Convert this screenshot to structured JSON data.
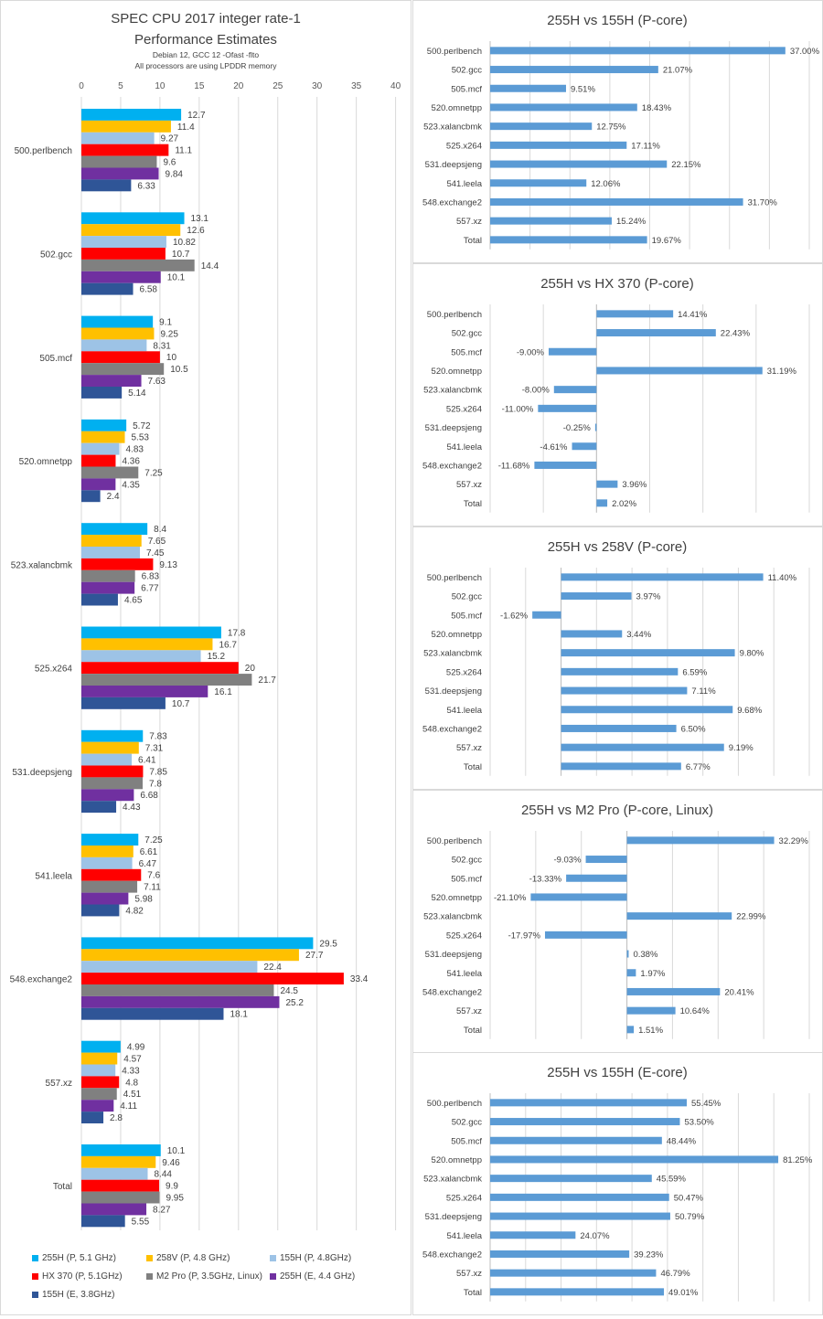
{
  "chart_data": [
    {
      "type": "bar",
      "orientation": "horizontal",
      "title": "SPEC CPU 2017 integer rate-1",
      "title_line2": "Performance Estimates",
      "subtitle1": "Debian 12, GCC 12 -Ofast -flto",
      "subtitle2": "All processors are using LPDDR memory",
      "xlim": [
        0,
        40
      ],
      "xticks": [
        0,
        5,
        10,
        15,
        20,
        25,
        30,
        35,
        40
      ],
      "grid": true,
      "legend_position": "bottom",
      "categories": [
        "500.perlbench",
        "502.gcc",
        "505.mcf",
        "520.omnetpp",
        "523.xalancbmk",
        "525.x264",
        "531.deepsjeng",
        "541.leela",
        "548.exchange2",
        "557.xz",
        "Total"
      ],
      "series": [
        {
          "name": "255H (P, 5.1 GHz)",
          "color": "#00b0f0",
          "values": [
            12.7,
            13.1,
            9.1,
            5.72,
            8.4,
            17.8,
            7.83,
            7.25,
            29.5,
            4.99,
            10.1
          ]
        },
        {
          "name": "258V (P, 4.8 GHz)",
          "color": "#ffc000",
          "values": [
            11.4,
            12.6,
            9.25,
            5.53,
            7.65,
            16.7,
            7.31,
            6.61,
            27.7,
            4.57,
            9.46
          ]
        },
        {
          "name": "155H (P, 4.8GHz)",
          "color": "#9dc3e6",
          "values": [
            9.27,
            10.82,
            8.31,
            4.83,
            7.45,
            15.2,
            6.41,
            6.47,
            22.4,
            4.33,
            8.44
          ]
        },
        {
          "name": "HX 370 (P, 5.1GHz)",
          "color": "#ff0000",
          "values": [
            11.1,
            10.7,
            10,
            4.36,
            9.13,
            20,
            7.85,
            7.6,
            33.4,
            4.8,
            9.9
          ]
        },
        {
          "name": "M2 Pro (P, 3.5GHz, Linux)",
          "color": "#808080",
          "values": [
            9.6,
            14.4,
            10.5,
            7.25,
            6.83,
            21.7,
            7.8,
            7.11,
            24.5,
            4.51,
            9.95
          ]
        },
        {
          "name": "255H (E, 4.4 GHz)",
          "color": "#7030a0",
          "values": [
            9.84,
            10.1,
            7.63,
            4.35,
            6.77,
            16.1,
            6.68,
            5.98,
            25.2,
            4.11,
            8.27
          ]
        },
        {
          "name": "155H (E, 3.8GHz)",
          "color": "#2f5597",
          "values": [
            6.33,
            6.58,
            5.14,
            2.4,
            4.65,
            10.7,
            4.43,
            4.82,
            18.1,
            2.8,
            5.55
          ]
        }
      ]
    },
    {
      "type": "bar",
      "orientation": "horizontal",
      "title": "255H vs 155H (P-core)",
      "bar_color": "#5b9bd5",
      "xlim": [
        0,
        40
      ],
      "grid_step": 5,
      "categories": [
        "500.perlbench",
        "502.gcc",
        "505.mcf",
        "520.omnetpp",
        "523.xalancbmk",
        "525.x264",
        "531.deepsjeng",
        "541.leela",
        "548.exchange2",
        "557.xz",
        "Total"
      ],
      "values": [
        37.0,
        21.07,
        9.51,
        18.43,
        12.75,
        17.11,
        22.15,
        12.06,
        31.7,
        15.24,
        19.67
      ],
      "labels": [
        "37.00%",
        "21.07%",
        "9.51%",
        "18.43%",
        "12.75%",
        "17.11%",
        "22.15%",
        "12.06%",
        "31.70%",
        "15.24%",
        "19.67%"
      ]
    },
    {
      "type": "bar",
      "orientation": "horizontal",
      "title": "255H vs HX 370 (P-core)",
      "bar_color": "#5b9bd5",
      "xlim": [
        -20,
        40
      ],
      "grid_step": 10,
      "categories": [
        "500.perlbench",
        "502.gcc",
        "505.mcf",
        "520.omnetpp",
        "523.xalancbmk",
        "525.x264",
        "531.deepsjeng",
        "541.leela",
        "548.exchange2",
        "557.xz",
        "Total"
      ],
      "values": [
        14.41,
        22.43,
        -9.0,
        31.19,
        -8.0,
        -11.0,
        -0.25,
        -4.61,
        -11.68,
        3.96,
        2.02
      ],
      "labels": [
        "14.41%",
        "22.43%",
        "-9.00%",
        "31.19%",
        "-8.00%",
        "-11.00%",
        "-0.25%",
        "-4.61%",
        "-11.68%",
        "3.96%",
        "2.02%"
      ]
    },
    {
      "type": "bar",
      "orientation": "horizontal",
      "title": "255H vs 258V (P-core)",
      "bar_color": "#5b9bd5",
      "xlim": [
        -4,
        14
      ],
      "grid_step": 2,
      "categories": [
        "500.perlbench",
        "502.gcc",
        "505.mcf",
        "520.omnetpp",
        "523.xalancbmk",
        "525.x264",
        "531.deepsjeng",
        "541.leela",
        "548.exchange2",
        "557.xz",
        "Total"
      ],
      "values": [
        11.4,
        3.97,
        -1.62,
        3.44,
        9.8,
        6.59,
        7.11,
        9.68,
        6.5,
        9.19,
        6.77
      ],
      "labels": [
        "11.40%",
        "3.97%",
        "-1.62%",
        "3.44%",
        "9.80%",
        "6.59%",
        "7.11%",
        "9.68%",
        "6.50%",
        "9.19%",
        "6.77%"
      ]
    },
    {
      "type": "bar",
      "orientation": "horizontal",
      "title": "255H vs M2 Pro (P-core, Linux)",
      "bar_color": "#5b9bd5",
      "xlim": [
        -30,
        40
      ],
      "grid_step": 10,
      "categories": [
        "500.perlbench",
        "502.gcc",
        "505.mcf",
        "520.omnetpp",
        "523.xalancbmk",
        "525.x264",
        "531.deepsjeng",
        "541.leela",
        "548.exchange2",
        "557.xz",
        "Total"
      ],
      "values": [
        32.29,
        -9.03,
        -13.33,
        -21.1,
        22.99,
        -17.97,
        0.38,
        1.97,
        20.41,
        10.64,
        1.51
      ],
      "labels": [
        "32.29%",
        "-9.03%",
        "-13.33%",
        "-21.10%",
        "22.99%",
        "-17.97%",
        "0.38%",
        "1.97%",
        "20.41%",
        "10.64%",
        "1.51%"
      ]
    },
    {
      "type": "bar",
      "orientation": "horizontal",
      "title": "255H vs 155H (E-core)",
      "bar_color": "#5b9bd5",
      "xlim": [
        0,
        90
      ],
      "grid_step": 10,
      "categories": [
        "500.perlbench",
        "502.gcc",
        "505.mcf",
        "520.omnetpp",
        "523.xalancbmk",
        "525.x264",
        "531.deepsjeng",
        "541.leela",
        "548.exchange2",
        "557.xz",
        "Total"
      ],
      "values": [
        55.45,
        53.5,
        48.44,
        81.25,
        45.59,
        50.47,
        50.79,
        24.07,
        39.23,
        46.79,
        49.01
      ],
      "labels": [
        "55.45%",
        "53.50%",
        "48.44%",
        "81.25%",
        "45.59%",
        "50.47%",
        "50.79%",
        "24.07%",
        "39.23%",
        "46.79%",
        "49.01%"
      ]
    }
  ]
}
